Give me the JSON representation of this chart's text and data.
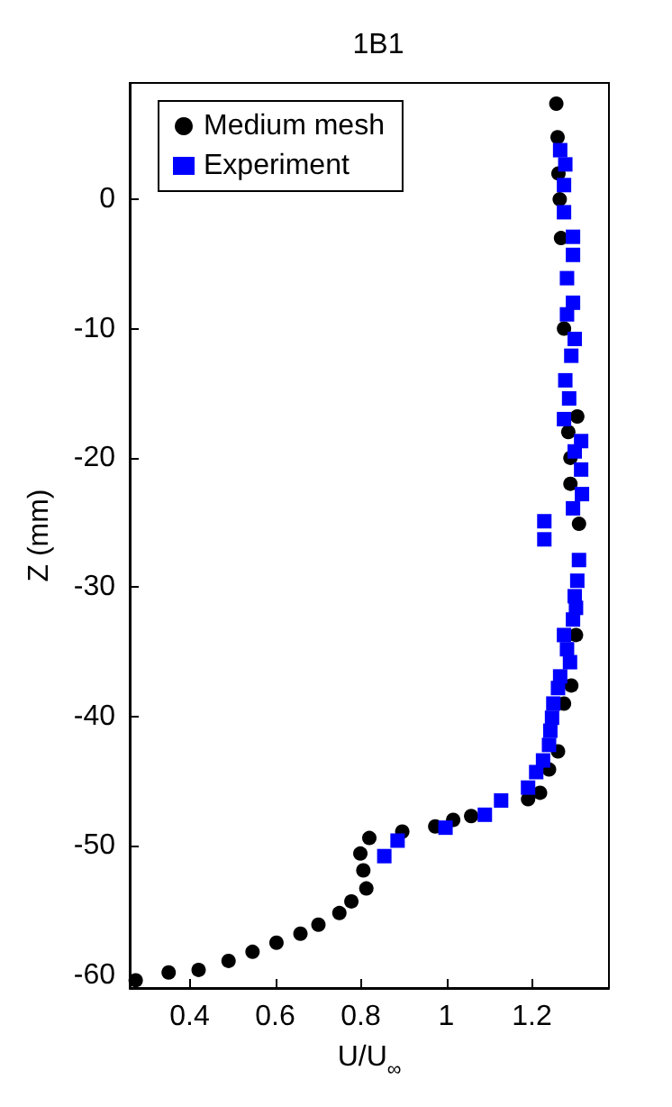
{
  "chart_data": {
    "type": "scatter",
    "title": "1B1",
    "xlabel": "U/U$_{∞}$",
    "ylabel": "Z (mm)",
    "xlim": [
      0.26,
      1.38
    ],
    "xticks": [
      0.4,
      0.6,
      0.8,
      1,
      1.2
    ],
    "ylim": [
      -61,
      9
    ],
    "yticks": [
      -60,
      -50,
      -40,
      -30,
      -20,
      -10,
      0
    ],
    "legend": "top left",
    "series": [
      {
        "name": "Medium mesh",
        "color": "#000000",
        "marker": "circle",
        "x": [
          1.257,
          1.26,
          1.262,
          1.265,
          1.268,
          1.275,
          1.285,
          1.306,
          1.29,
          1.29,
          1.31,
          1.303,
          1.292,
          1.275,
          1.261,
          1.24,
          1.219,
          1.191,
          1.058,
          1.016,
          0.974,
          0.897,
          0.82,
          0.799,
          0.806,
          0.813,
          0.778,
          0.75,
          0.701,
          0.659,
          0.603,
          0.547,
          0.491,
          0.421,
          0.351,
          0.274
        ],
        "values": [
          7.4,
          4.8,
          2,
          0,
          -3,
          -10,
          -18,
          -16.8,
          -20,
          -22,
          -25.1,
          -33.7,
          -37.6,
          -39,
          -42.7,
          -44.1,
          -45.9,
          -46.4,
          -47.7,
          -48,
          -48.5,
          -48.9,
          -49.4,
          -50.6,
          -51.9,
          -53.3,
          -54.3,
          -55.2,
          -56.1,
          -56.8,
          -57.5,
          -58.2,
          -58.9,
          -59.6,
          -59.8,
          -60.4
        ]
      },
      {
        "name": "Experiment",
        "color": "#0000ff",
        "marker": "square",
        "x": [
          1.266,
          1.278,
          1.275,
          1.275,
          1.296,
          1.296,
          1.282,
          1.296,
          1.282,
          1.3,
          1.292,
          1.278,
          1.287,
          1.275,
          1.315,
          1.3,
          1.315,
          1.317,
          1.296,
          1.229,
          1.229,
          1.31,
          1.306,
          1.3,
          1.303,
          1.296,
          1.275,
          1.282,
          1.289,
          1.266,
          1.261,
          1.25,
          1.247,
          1.243,
          1.24,
          1.226,
          1.21,
          1.191,
          1.128,
          1.09,
          0.998,
          0.886,
          0.855
        ],
        "values": [
          3.8,
          2.7,
          1.1,
          -1,
          -2.9,
          -4.3,
          -6.1,
          -8,
          -8.9,
          -10.8,
          -12.1,
          -14,
          -15.4,
          -17,
          -18.7,
          -19.5,
          -20.9,
          -22.8,
          -23.9,
          -24.9,
          -26.3,
          -27.9,
          -29.5,
          -30.7,
          -31.6,
          -32.5,
          -33.7,
          -34.8,
          -35.8,
          -36.9,
          -37.8,
          -39,
          -40.1,
          -41.1,
          -42.2,
          -43.4,
          -44.3,
          -45.5,
          -46.5,
          -47.6,
          -48.6,
          -49.6,
          -50.8
        ]
      }
    ]
  }
}
